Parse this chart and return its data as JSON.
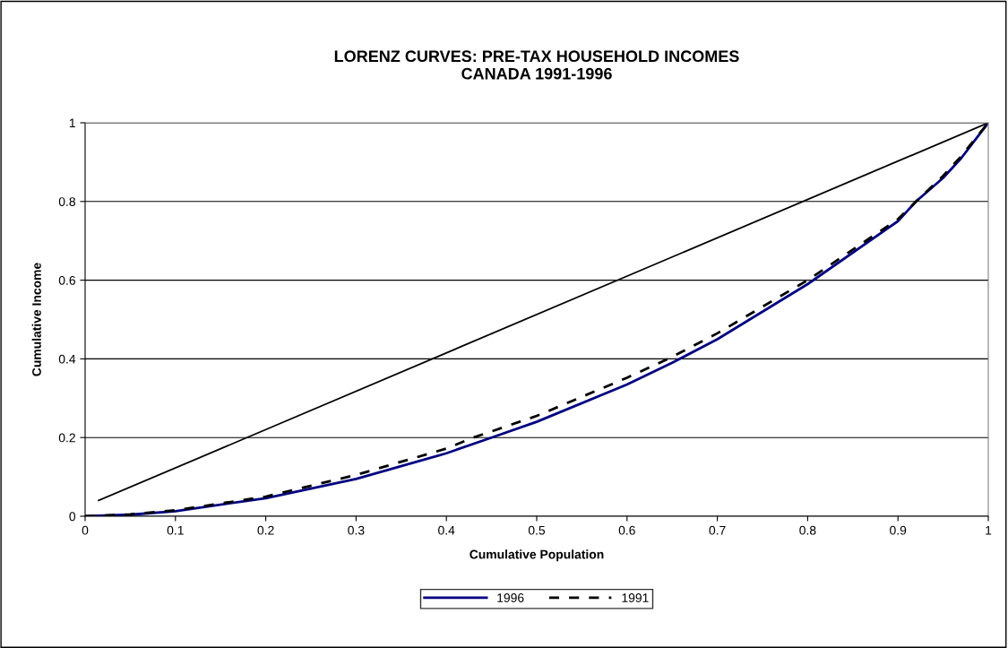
{
  "chart_data": {
    "type": "line",
    "title": "LORENZ CURVES: PRE-TAX HOUSEHOLD INCOMES\nCANADA 1991-1996",
    "xlabel": "Cumulative Population",
    "ylabel": "Cumulative Income",
    "xlim": [
      0,
      1
    ],
    "ylim": [
      0,
      1
    ],
    "xticks": [
      0,
      0.1,
      0.2,
      0.3,
      0.4,
      0.5,
      0.6,
      0.7,
      0.8,
      0.9,
      1
    ],
    "yticks": [
      0,
      0.2,
      0.4,
      0.6,
      0.8,
      1
    ],
    "grid": "y",
    "legend": "bottom",
    "marker": "none",
    "series": [
      {
        "name": "1996",
        "color": "#000080",
        "line_style": "solid",
        "x": [
          0,
          0.05,
          0.1,
          0.2,
          0.3,
          0.4,
          0.45,
          0.5,
          0.6,
          0.65,
          0.7,
          0.8,
          0.9,
          0.92,
          0.95,
          0.97,
          0.99,
          1
        ],
        "values": [
          0,
          0.004,
          0.013,
          0.046,
          0.095,
          0.16,
          0.2,
          0.24,
          0.335,
          0.39,
          0.45,
          0.59,
          0.75,
          0.8,
          0.86,
          0.91,
          0.97,
          1
        ]
      },
      {
        "name": "1991",
        "color": "#000000",
        "line_style": "dashed",
        "x": [
          0,
          0.05,
          0.1,
          0.2,
          0.3,
          0.4,
          0.43,
          0.5,
          0.6,
          0.65,
          0.7,
          0.8,
          0.9,
          0.92,
          0.95,
          0.97,
          0.99,
          1
        ],
        "values": [
          0,
          0.005,
          0.015,
          0.05,
          0.105,
          0.172,
          0.2,
          0.255,
          0.352,
          0.405,
          0.465,
          0.6,
          0.755,
          0.8,
          0.865,
          0.915,
          0.972,
          1
        ]
      },
      {
        "color": "#000000",
        "line_style": "solid",
        "x": [
          0.015,
          1
        ],
        "values": [
          0.04,
          1
        ]
      }
    ]
  }
}
